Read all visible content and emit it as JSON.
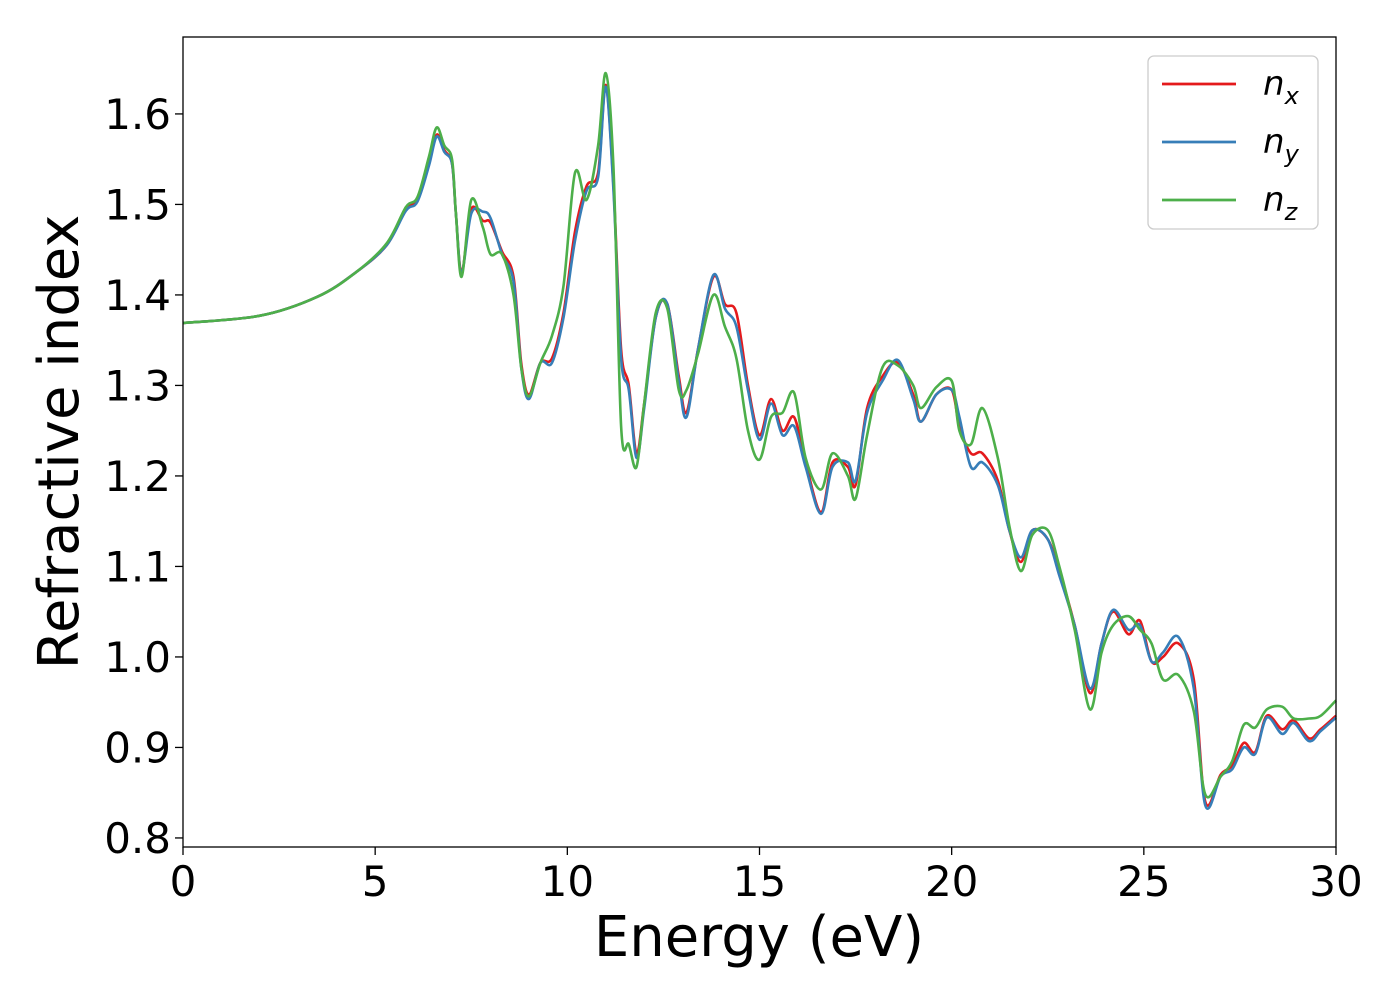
{
  "chart_data": {
    "type": "line",
    "xlabel": "Energy (eV)",
    "ylabel": "Refractive index",
    "xlim": [
      0,
      30
    ],
    "ylim": [
      0.79,
      1.685
    ],
    "xticks": [
      0,
      5,
      10,
      15,
      20,
      25,
      30
    ],
    "xtick_labels": [
      "0",
      "5",
      "10",
      "15",
      "20",
      "25",
      "30"
    ],
    "yticks": [
      0.8,
      0.9,
      1.0,
      1.1,
      1.2,
      1.3,
      1.4,
      1.5,
      1.6
    ],
    "ytick_labels": [
      "0.8",
      "0.9",
      "1.0",
      "1.1",
      "1.2",
      "1.3",
      "1.4",
      "1.5",
      "1.6"
    ],
    "grid": false,
    "legend_position": "top-right",
    "series": [
      {
        "name": "n_x",
        "label_main": "n",
        "label_sub": "x",
        "color": "#e41a1c",
        "points": [
          [
            0,
            1.369
          ],
          [
            2,
            1.377
          ],
          [
            3.5,
            1.398
          ],
          [
            4.5,
            1.425
          ],
          [
            5.3,
            1.455
          ],
          [
            5.8,
            1.495
          ],
          [
            6.1,
            1.505
          ],
          [
            6.4,
            1.545
          ],
          [
            6.6,
            1.577
          ],
          [
            6.8,
            1.56
          ],
          [
            7.0,
            1.545
          ],
          [
            7.1,
            1.49
          ],
          [
            7.25,
            1.425
          ],
          [
            7.5,
            1.495
          ],
          [
            7.8,
            1.482
          ],
          [
            8.0,
            1.48
          ],
          [
            8.3,
            1.448
          ],
          [
            8.6,
            1.42
          ],
          [
            8.8,
            1.325
          ],
          [
            9.0,
            1.29
          ],
          [
            9.3,
            1.325
          ],
          [
            9.6,
            1.33
          ],
          [
            9.9,
            1.38
          ],
          [
            10.2,
            1.47
          ],
          [
            10.5,
            1.52
          ],
          [
            10.8,
            1.535
          ],
          [
            11.0,
            1.632
          ],
          [
            11.2,
            1.52
          ],
          [
            11.4,
            1.34
          ],
          [
            11.6,
            1.3
          ],
          [
            11.8,
            1.225
          ],
          [
            12.0,
            1.28
          ],
          [
            12.3,
            1.375
          ],
          [
            12.6,
            1.39
          ],
          [
            12.9,
            1.31
          ],
          [
            13.1,
            1.27
          ],
          [
            13.4,
            1.34
          ],
          [
            13.8,
            1.42
          ],
          [
            14.1,
            1.39
          ],
          [
            14.4,
            1.38
          ],
          [
            14.7,
            1.3
          ],
          [
            15.0,
            1.245
          ],
          [
            15.3,
            1.285
          ],
          [
            15.6,
            1.25
          ],
          [
            15.9,
            1.265
          ],
          [
            16.2,
            1.215
          ],
          [
            16.6,
            1.16
          ],
          [
            16.9,
            1.215
          ],
          [
            17.3,
            1.21
          ],
          [
            17.5,
            1.19
          ],
          [
            17.8,
            1.275
          ],
          [
            18.2,
            1.31
          ],
          [
            18.6,
            1.325
          ],
          [
            19.0,
            1.29
          ],
          [
            19.2,
            1.26
          ],
          [
            19.6,
            1.29
          ],
          [
            20.0,
            1.295
          ],
          [
            20.2,
            1.255
          ],
          [
            20.5,
            1.225
          ],
          [
            20.8,
            1.225
          ],
          [
            21.2,
            1.195
          ],
          [
            21.5,
            1.14
          ],
          [
            21.8,
            1.105
          ],
          [
            22.1,
            1.14
          ],
          [
            22.5,
            1.13
          ],
          [
            22.8,
            1.095
          ],
          [
            23.2,
            1.035
          ],
          [
            23.6,
            0.96
          ],
          [
            23.9,
            1.015
          ],
          [
            24.2,
            1.05
          ],
          [
            24.6,
            1.025
          ],
          [
            24.9,
            1.04
          ],
          [
            25.2,
            0.995
          ],
          [
            25.5,
            1.0
          ],
          [
            25.9,
            1.015
          ],
          [
            26.3,
            0.975
          ],
          [
            26.6,
            0.84
          ],
          [
            27.0,
            0.87
          ],
          [
            27.3,
            0.88
          ],
          [
            27.6,
            0.905
          ],
          [
            27.9,
            0.895
          ],
          [
            28.2,
            0.935
          ],
          [
            28.6,
            0.92
          ],
          [
            28.9,
            0.93
          ],
          [
            29.3,
            0.91
          ],
          [
            29.6,
            0.92
          ],
          [
            30.0,
            0.935
          ]
        ]
      },
      {
        "name": "n_y",
        "label_main": "n",
        "label_sub": "y",
        "color": "#377eb8",
        "points": [
          [
            0,
            1.369
          ],
          [
            2,
            1.377
          ],
          [
            3.5,
            1.398
          ],
          [
            4.5,
            1.425
          ],
          [
            5.3,
            1.455
          ],
          [
            5.8,
            1.493
          ],
          [
            6.1,
            1.503
          ],
          [
            6.4,
            1.543
          ],
          [
            6.6,
            1.575
          ],
          [
            6.8,
            1.558
          ],
          [
            7.0,
            1.545
          ],
          [
            7.1,
            1.49
          ],
          [
            7.25,
            1.425
          ],
          [
            7.5,
            1.49
          ],
          [
            7.8,
            1.492
          ],
          [
            8.0,
            1.485
          ],
          [
            8.3,
            1.445
          ],
          [
            8.6,
            1.415
          ],
          [
            8.8,
            1.32
          ],
          [
            9.0,
            1.285
          ],
          [
            9.3,
            1.325
          ],
          [
            9.6,
            1.325
          ],
          [
            9.9,
            1.375
          ],
          [
            10.2,
            1.46
          ],
          [
            10.5,
            1.515
          ],
          [
            10.8,
            1.53
          ],
          [
            11.0,
            1.63
          ],
          [
            11.2,
            1.515
          ],
          [
            11.4,
            1.33
          ],
          [
            11.6,
            1.295
          ],
          [
            11.8,
            1.22
          ],
          [
            12.0,
            1.275
          ],
          [
            12.3,
            1.375
          ],
          [
            12.6,
            1.39
          ],
          [
            12.9,
            1.305
          ],
          [
            13.1,
            1.265
          ],
          [
            13.4,
            1.34
          ],
          [
            13.8,
            1.422
          ],
          [
            14.1,
            1.385
          ],
          [
            14.4,
            1.365
          ],
          [
            14.7,
            1.295
          ],
          [
            15.0,
            1.24
          ],
          [
            15.3,
            1.28
          ],
          [
            15.6,
            1.245
          ],
          [
            15.9,
            1.255
          ],
          [
            16.2,
            1.21
          ],
          [
            16.6,
            1.158
          ],
          [
            16.9,
            1.21
          ],
          [
            17.3,
            1.215
          ],
          [
            17.5,
            1.195
          ],
          [
            17.8,
            1.27
          ],
          [
            18.2,
            1.305
          ],
          [
            18.6,
            1.328
          ],
          [
            19.0,
            1.285
          ],
          [
            19.2,
            1.26
          ],
          [
            19.6,
            1.29
          ],
          [
            20.0,
            1.295
          ],
          [
            20.2,
            1.265
          ],
          [
            20.5,
            1.21
          ],
          [
            20.8,
            1.215
          ],
          [
            21.2,
            1.19
          ],
          [
            21.5,
            1.14
          ],
          [
            21.8,
            1.11
          ],
          [
            22.1,
            1.14
          ],
          [
            22.5,
            1.13
          ],
          [
            22.8,
            1.09
          ],
          [
            23.2,
            1.035
          ],
          [
            23.6,
            0.965
          ],
          [
            23.9,
            1.015
          ],
          [
            24.2,
            1.052
          ],
          [
            24.6,
            1.03
          ],
          [
            24.9,
            1.035
          ],
          [
            25.2,
            0.995
          ],
          [
            25.5,
            1.005
          ],
          [
            25.9,
            1.022
          ],
          [
            26.3,
            0.965
          ],
          [
            26.6,
            0.836
          ],
          [
            27.0,
            0.868
          ],
          [
            27.3,
            0.876
          ],
          [
            27.6,
            0.9
          ],
          [
            27.9,
            0.893
          ],
          [
            28.2,
            0.933
          ],
          [
            28.6,
            0.915
          ],
          [
            28.9,
            0.927
          ],
          [
            29.3,
            0.907
          ],
          [
            29.6,
            0.918
          ],
          [
            30.0,
            0.933
          ]
        ]
      },
      {
        "name": "n_z",
        "label_main": "n",
        "label_sub": "z",
        "color": "#4daf4a",
        "points": [
          [
            0,
            1.369
          ],
          [
            2,
            1.377
          ],
          [
            3.5,
            1.398
          ],
          [
            4.5,
            1.425
          ],
          [
            5.3,
            1.457
          ],
          [
            5.8,
            1.497
          ],
          [
            6.1,
            1.508
          ],
          [
            6.4,
            1.553
          ],
          [
            6.6,
            1.585
          ],
          [
            6.8,
            1.565
          ],
          [
            7.0,
            1.55
          ],
          [
            7.1,
            1.49
          ],
          [
            7.25,
            1.42
          ],
          [
            7.5,
            1.505
          ],
          [
            7.8,
            1.475
          ],
          [
            8.0,
            1.445
          ],
          [
            8.3,
            1.445
          ],
          [
            8.6,
            1.4
          ],
          [
            8.8,
            1.32
          ],
          [
            9.0,
            1.288
          ],
          [
            9.3,
            1.325
          ],
          [
            9.6,
            1.355
          ],
          [
            9.9,
            1.41
          ],
          [
            10.2,
            1.535
          ],
          [
            10.5,
            1.505
          ],
          [
            10.8,
            1.565
          ],
          [
            11.0,
            1.645
          ],
          [
            11.2,
            1.54
          ],
          [
            11.4,
            1.255
          ],
          [
            11.6,
            1.235
          ],
          [
            11.8,
            1.21
          ],
          [
            12.0,
            1.28
          ],
          [
            12.3,
            1.38
          ],
          [
            12.6,
            1.385
          ],
          [
            12.9,
            1.295
          ],
          [
            13.1,
            1.295
          ],
          [
            13.4,
            1.335
          ],
          [
            13.8,
            1.4
          ],
          [
            14.1,
            1.365
          ],
          [
            14.4,
            1.33
          ],
          [
            14.7,
            1.25
          ],
          [
            15.0,
            1.218
          ],
          [
            15.3,
            1.265
          ],
          [
            15.6,
            1.27
          ],
          [
            15.9,
            1.292
          ],
          [
            16.2,
            1.22
          ],
          [
            16.6,
            1.185
          ],
          [
            16.9,
            1.225
          ],
          [
            17.3,
            1.2
          ],
          [
            17.5,
            1.175
          ],
          [
            17.8,
            1.245
          ],
          [
            18.2,
            1.32
          ],
          [
            18.6,
            1.322
          ],
          [
            19.0,
            1.3
          ],
          [
            19.2,
            1.275
          ],
          [
            19.6,
            1.298
          ],
          [
            20.0,
            1.305
          ],
          [
            20.2,
            1.25
          ],
          [
            20.5,
            1.235
          ],
          [
            20.8,
            1.275
          ],
          [
            21.2,
            1.22
          ],
          [
            21.5,
            1.145
          ],
          [
            21.8,
            1.095
          ],
          [
            22.1,
            1.135
          ],
          [
            22.5,
            1.14
          ],
          [
            22.8,
            1.1
          ],
          [
            23.2,
            1.03
          ],
          [
            23.6,
            0.942
          ],
          [
            23.9,
            1.005
          ],
          [
            24.2,
            1.035
          ],
          [
            24.6,
            1.045
          ],
          [
            24.9,
            1.03
          ],
          [
            25.2,
            1.015
          ],
          [
            25.5,
            0.975
          ],
          [
            25.9,
            0.98
          ],
          [
            26.3,
            0.94
          ],
          [
            26.6,
            0.848
          ],
          [
            27.0,
            0.868
          ],
          [
            27.3,
            0.885
          ],
          [
            27.6,
            0.925
          ],
          [
            27.9,
            0.922
          ],
          [
            28.2,
            0.942
          ],
          [
            28.6,
            0.945
          ],
          [
            28.9,
            0.932
          ],
          [
            29.3,
            0.932
          ],
          [
            29.6,
            0.935
          ],
          [
            30.0,
            0.952
          ]
        ]
      }
    ]
  }
}
